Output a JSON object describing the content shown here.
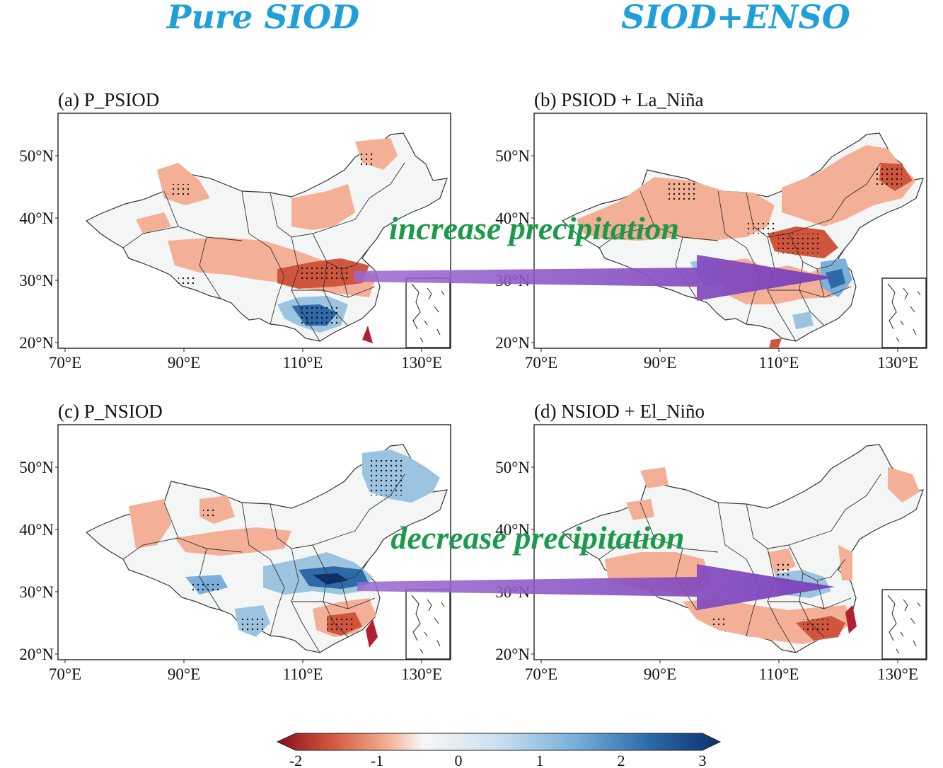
{
  "column_headers": {
    "left": "Pure SIOD",
    "right": "SIOD+ENSO"
  },
  "panels": [
    {
      "title": "(a) P_PSIOD"
    },
    {
      "title": "(b) PSIOD + La_Niña"
    },
    {
      "title": "(c) P_NSIOD"
    },
    {
      "title": "(d) NSIOD + El_Niño"
    }
  ],
  "axes": {
    "lat_labels": [
      "50°N",
      "40°N",
      "30°N",
      "20°N"
    ],
    "lon_labels": [
      "70°E",
      "90°E",
      "110°E",
      "130°E"
    ]
  },
  "annotations": {
    "top_arrow_text": "increase precipitation",
    "bottom_arrow_text": "decrease precipitation"
  },
  "colorbar": {
    "ticks": [
      "-2",
      "-1",
      "0",
      "1",
      "2",
      "3"
    ],
    "low_color": "#8b0e1a",
    "mid_color": "#f7f7f7",
    "high_color": "#0c2f6b"
  },
  "colors": {
    "header": "#1fa0d8",
    "annotation_text": "#1a9a4a",
    "arrow": "#8a4fc4",
    "positive_anomaly": "#f4b096",
    "strong_positive": "#d0553c",
    "negative_anomaly": "#9cc4e0",
    "strong_negative": "#2c6aa8"
  }
}
